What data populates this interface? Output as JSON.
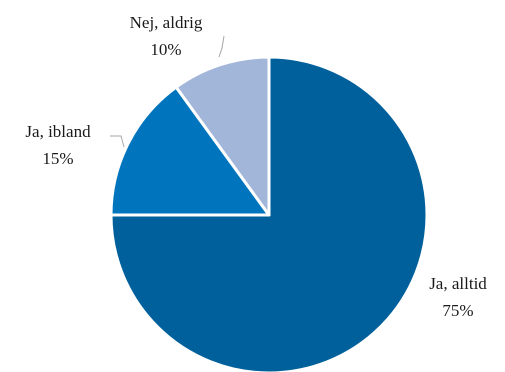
{
  "chart_data": {
    "type": "pie",
    "title": "",
    "slices": [
      {
        "label": "Ja, alltid",
        "value": 75,
        "value_label": "75%",
        "color": "#00609c"
      },
      {
        "label": "Ja, ibland",
        "value": 15,
        "value_label": "15%",
        "color": "#0075bd"
      },
      {
        "label": "Nej, aldrig",
        "value": 10,
        "value_label": "10%",
        "color": "#a2b6d9"
      }
    ],
    "start_angle_deg": 0,
    "direction": "clockwise"
  }
}
